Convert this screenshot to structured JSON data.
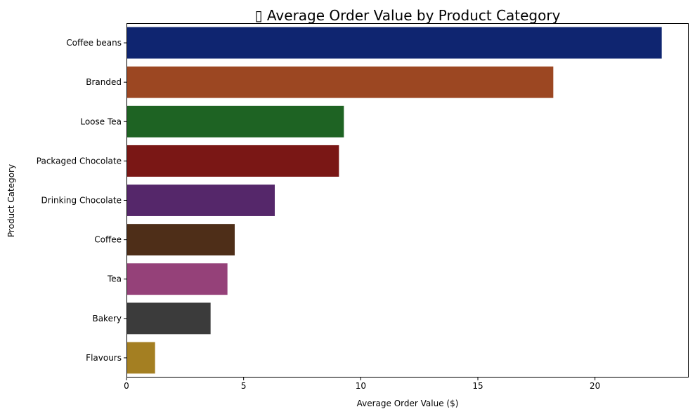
{
  "chart_data": {
    "type": "bar",
    "orientation": "horizontal",
    "title": "▯ Average Order Value by Product Category",
    "xlabel": "Average Order Value ($)",
    "ylabel": "Product Category",
    "categories": [
      "Coffee beans",
      "Branded",
      "Loose Tea",
      "Packaged Chocolate",
      "Drinking Chocolate",
      "Coffee",
      "Tea",
      "Bakery",
      "Flavours"
    ],
    "values": [
      22.85,
      18.22,
      9.28,
      9.07,
      6.33,
      4.62,
      4.31,
      3.59,
      1.22
    ],
    "colors": [
      "#0f2570",
      "#9c4722",
      "#1e6323",
      "#7a1715",
      "#55276a",
      "#4e2e18",
      "#954179",
      "#3b3b3b",
      "#a47f22"
    ],
    "xlim": [
      0,
      24
    ],
    "xticks": [
      0,
      5,
      10,
      15,
      20
    ],
    "xtick_labels": [
      "0",
      "5",
      "10",
      "15",
      "20"
    ],
    "grid": false,
    "legend": "none"
  }
}
